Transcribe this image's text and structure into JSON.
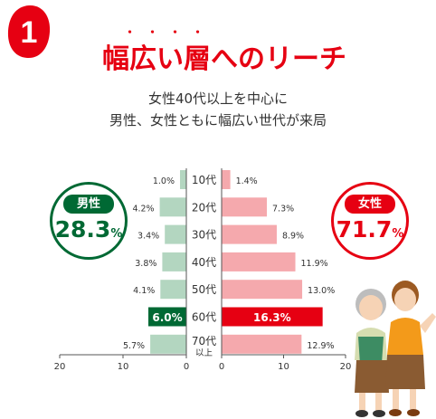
{
  "badge": {
    "number": "1"
  },
  "headline": {
    "text": "幅広い層へのリーチ",
    "emphasis_text": "幅広い層",
    "emphasis_dots": "・・・・"
  },
  "subtitle": {
    "line1": "女性40代以上を中心に",
    "line2": "男性、女性ともに幅広い世代が来局"
  },
  "male": {
    "label": "男性",
    "value": "28.3",
    "unit": "%"
  },
  "female": {
    "label": "女性",
    "value": "71.7",
    "unit": "%"
  },
  "colors": {
    "red": "#e60012",
    "green": "#006934",
    "male_bar": "#b3d6c0",
    "female_bar": "#f5a9ad",
    "male_highlight": "#006934",
    "female_highlight": "#e60012"
  },
  "illustration": {
    "name": "elderly-women-illustration"
  },
  "chart_data": {
    "type": "bar",
    "layout": "population-pyramid",
    "categories": [
      "10代",
      "20代",
      "30代",
      "40代",
      "50代",
      "60代",
      "70代以上"
    ],
    "category_lines": [
      [
        "10代"
      ],
      [
        "20代"
      ],
      [
        "30代"
      ],
      [
        "40代"
      ],
      [
        "50代"
      ],
      [
        "60代"
      ],
      [
        "70代",
        "以上"
      ]
    ],
    "series": [
      {
        "name": "男性",
        "values": [
          1.0,
          4.2,
          3.4,
          3.8,
          4.1,
          6.0,
          5.7
        ],
        "labels": [
          "1.0%",
          "4.2%",
          "3.4%",
          "3.8%",
          "4.1%",
          "6.0%",
          "5.7%"
        ]
      },
      {
        "name": "女性",
        "values": [
          1.4,
          7.3,
          8.9,
          11.9,
          13.0,
          16.3,
          12.9
        ],
        "labels": [
          "1.4%",
          "7.3%",
          "8.9%",
          "11.9%",
          "13.0%",
          "16.3%",
          "12.9%"
        ]
      }
    ],
    "highlight_index": 5,
    "male_axis": {
      "range": [
        0,
        20
      ],
      "ticks": [
        20,
        10,
        0
      ]
    },
    "female_axis": {
      "range": [
        0,
        20
      ],
      "ticks": [
        0,
        10,
        20
      ]
    },
    "grid": false,
    "legend": "none"
  }
}
